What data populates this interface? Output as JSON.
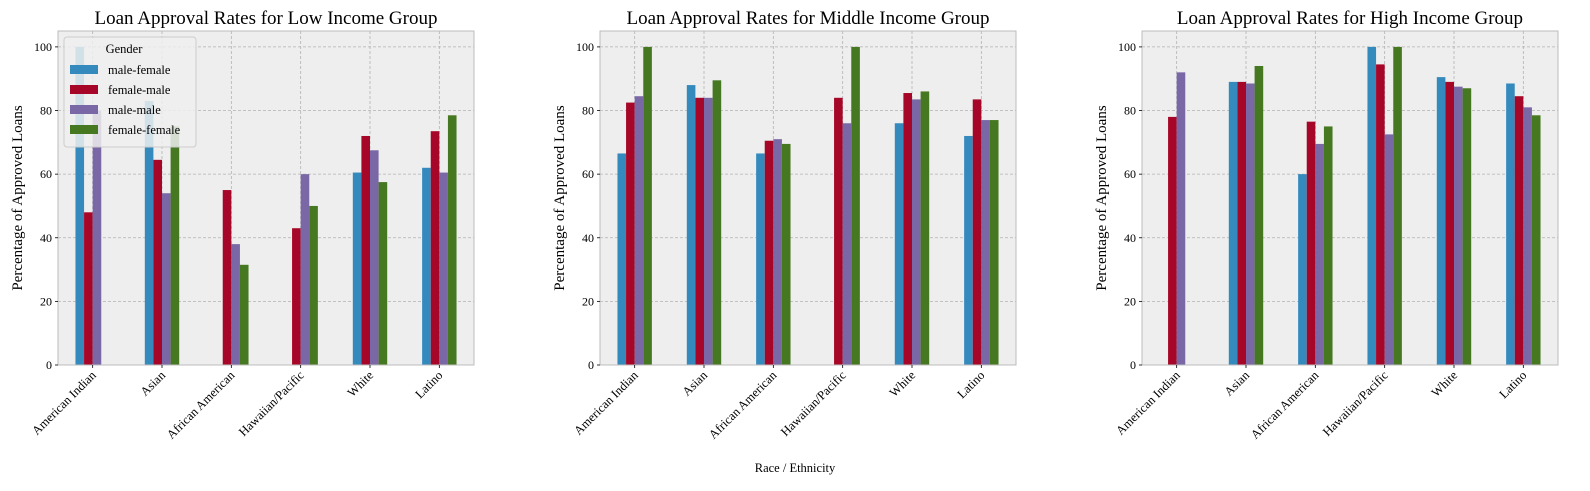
{
  "figure": {
    "xlabel": "Race / Ethnicity"
  },
  "colors": {
    "male-female": "#348abd",
    "female-male": "#a60628",
    "male-male": "#7a68a6",
    "female-female": "#467821",
    "axes_bg": "#eeeeee",
    "grid": "#b2b2b2"
  },
  "legend": {
    "title": "Gender",
    "placement": "upper-left of first panel"
  },
  "chart_data": [
    {
      "type": "bar",
      "title": "Loan Approval Rates for Low Income Group",
      "ylabel": "Percentage of Approved Loans",
      "xlabel": "",
      "ylim": [
        0,
        105
      ],
      "yticks": [
        0,
        20,
        40,
        60,
        80,
        100
      ],
      "grid": true,
      "categories": [
        "American Indian",
        "Asian",
        "African American",
        "Hawaiian/Pacific",
        "White",
        "Latino"
      ],
      "series": [
        {
          "name": "male-female",
          "values": [
            100,
            83,
            null,
            null,
            60.5,
            62
          ]
        },
        {
          "name": "female-male",
          "values": [
            48,
            64.5,
            55,
            43,
            72,
            73.5
          ]
        },
        {
          "name": "male-male",
          "values": [
            80,
            54,
            38,
            60,
            67.5,
            60.5
          ]
        },
        {
          "name": "female-female",
          "values": [
            null,
            75,
            31.5,
            50,
            57.5,
            78.5
          ]
        }
      ]
    },
    {
      "type": "bar",
      "title": "Loan Approval Rates for Middle Income Group",
      "ylabel": "Percentage of Approved Loans",
      "xlabel": "",
      "ylim": [
        0,
        105
      ],
      "yticks": [
        0,
        20,
        40,
        60,
        80,
        100
      ],
      "grid": true,
      "categories": [
        "American Indian",
        "Asian",
        "African American",
        "Hawaiian/Pacific",
        "White",
        "Latino"
      ],
      "series": [
        {
          "name": "male-female",
          "values": [
            66.5,
            88,
            66.5,
            null,
            76,
            72
          ]
        },
        {
          "name": "female-male",
          "values": [
            82.5,
            84,
            70.5,
            84,
            85.5,
            83.5
          ]
        },
        {
          "name": "male-male",
          "values": [
            84.5,
            84,
            71,
            76,
            83.5,
            77
          ]
        },
        {
          "name": "female-female",
          "values": [
            100,
            89.5,
            69.5,
            100,
            86,
            77
          ]
        }
      ]
    },
    {
      "type": "bar",
      "title": "Loan Approval Rates for High Income Group",
      "ylabel": "Percentage of Approved Loans",
      "xlabel": "",
      "ylim": [
        0,
        105
      ],
      "yticks": [
        0,
        20,
        40,
        60,
        80,
        100
      ],
      "grid": true,
      "categories": [
        "American Indian",
        "Asian",
        "African American",
        "Hawaiian/Pacific",
        "White",
        "Latino"
      ],
      "series": [
        {
          "name": "male-female",
          "values": [
            null,
            89,
            60,
            100,
            90.5,
            88.5
          ]
        },
        {
          "name": "female-male",
          "values": [
            78,
            89,
            76.5,
            94.5,
            89,
            84.5
          ]
        },
        {
          "name": "male-male",
          "values": [
            92,
            88.5,
            69.5,
            72.5,
            87.5,
            81
          ]
        },
        {
          "name": "female-female",
          "values": [
            null,
            94,
            75,
            100,
            87,
            78.5
          ]
        }
      ]
    }
  ]
}
